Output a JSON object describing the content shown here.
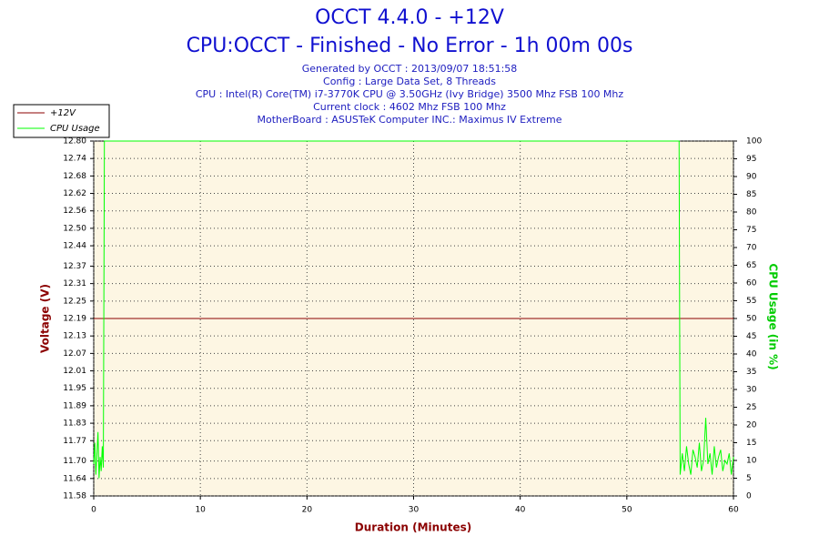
{
  "chart_data": {
    "type": "line",
    "title": "OCCT 4.4.0 - +12V",
    "subtitle": "CPU:OCCT - Finished - No Error - 1h 00m 00s",
    "info": [
      "Generated by OCCT : 2013/09/07 18:51:58",
      "Config : Large Data Set, 8 Threads",
      "CPU : Intel(R) Core(TM) i7-3770K CPU @ 3.50GHz (Ivy Bridge) 3500 Mhz FSB 100 Mhz",
      "Current clock : 4602 Mhz FSB 100 Mhz",
      "MotherBoard : ASUSTeK Computer INC.: Maximus IV Extreme"
    ],
    "x_label": "Duration (Minutes)",
    "y_label": "Voltage (V)",
    "y2_label": "CPU Usage (in %)",
    "x": [
      0,
      0.1,
      0.2,
      0.3,
      0.4,
      0.5,
      0.6,
      0.7,
      0.8,
      0.9,
      1.0,
      54.9,
      55.0,
      55.2,
      55.4,
      55.6,
      55.8,
      56.0,
      56.2,
      56.4,
      56.6,
      56.8,
      57.0,
      57.2,
      57.4,
      57.6,
      57.8,
      58.0,
      58.2,
      58.4,
      58.6,
      58.8,
      59.0,
      59.2,
      59.4,
      59.6,
      59.8,
      60.0
    ],
    "series": [
      {
        "name": "+12V",
        "color": "#8b0000",
        "axis": "y",
        "values": [
          12.19,
          12.19,
          12.19,
          12.19,
          12.19,
          12.19,
          12.19,
          12.19,
          12.19,
          12.19,
          12.19,
          12.19,
          12.19,
          12.19,
          12.19,
          12.19,
          12.19,
          12.19,
          12.19,
          12.19,
          12.19,
          12.19,
          12.19,
          12.19,
          12.19,
          12.19,
          12.19,
          12.19,
          12.19,
          12.19,
          12.19,
          12.19,
          12.19,
          12.19,
          12.19,
          12.19,
          12.19,
          12.19
        ]
      },
      {
        "name": "CPU Usage",
        "color": "#00ff00",
        "axis": "y2",
        "values": [
          9,
          15,
          6,
          12,
          18,
          5,
          11,
          7,
          14,
          8,
          100,
          100,
          6,
          12,
          7,
          14,
          9,
          6,
          13,
          11,
          8,
          15,
          7,
          10,
          22,
          9,
          12,
          6,
          14,
          8,
          11,
          13,
          7,
          10,
          9,
          12,
          6,
          11
        ]
      }
    ],
    "xlim": [
      0,
      60
    ],
    "xticks": [
      0,
      10,
      20,
      30,
      40,
      50,
      60
    ],
    "ylim": [
      11.58,
      12.8
    ],
    "yticks": [
      11.58,
      11.64,
      {
        "value": 11.7,
        "label": "11.70"
      },
      11.77,
      11.83,
      11.89,
      11.95,
      12.01,
      12.07,
      12.13,
      12.19,
      12.25,
      12.31,
      12.37,
      12.44,
      {
        "value": 12.5,
        "label": "12.50"
      },
      12.56,
      12.62,
      12.68,
      12.74,
      {
        "value": 12.8,
        "label": "12.80"
      }
    ],
    "y2lim": [
      0,
      100
    ],
    "y2ticks": [
      0,
      5,
      10,
      15,
      20,
      25,
      30,
      35,
      40,
      45,
      50,
      55,
      60,
      65,
      70,
      75,
      80,
      85,
      90,
      95,
      100
    ],
    "grid": true,
    "legend": "top-left"
  }
}
